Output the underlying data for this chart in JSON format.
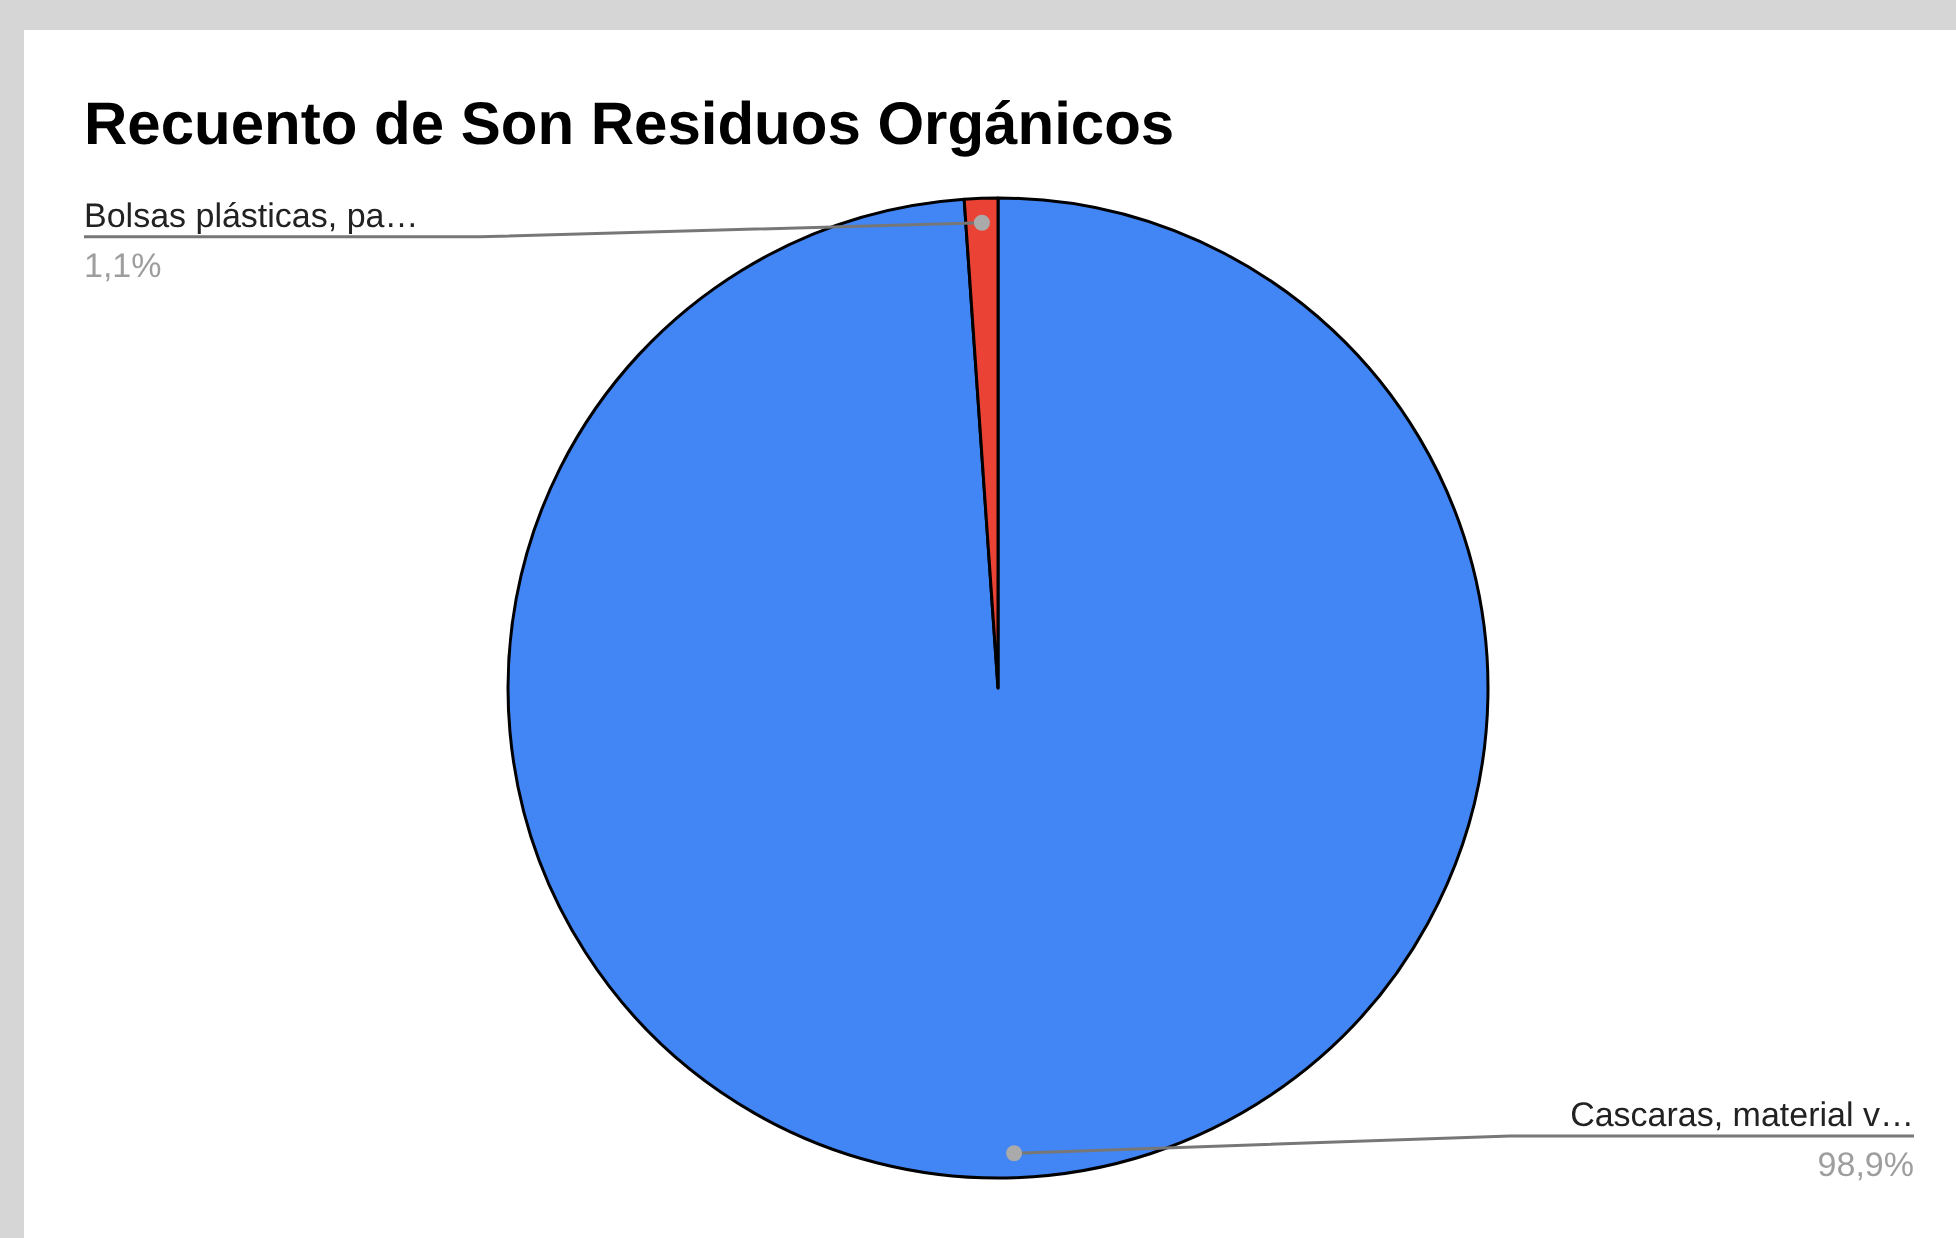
{
  "chart_data": {
    "type": "pie",
    "title": "Recuento de Son Residuos Orgánicos",
    "categories": [
      "Cascaras, material v…",
      "Bolsas plásticas, pa…"
    ],
    "values": [
      98.9,
      1.1
    ],
    "colors": [
      "#4285f4",
      "#ea4335"
    ],
    "value_labels": [
      "98,9%",
      "1,1%"
    ]
  }
}
